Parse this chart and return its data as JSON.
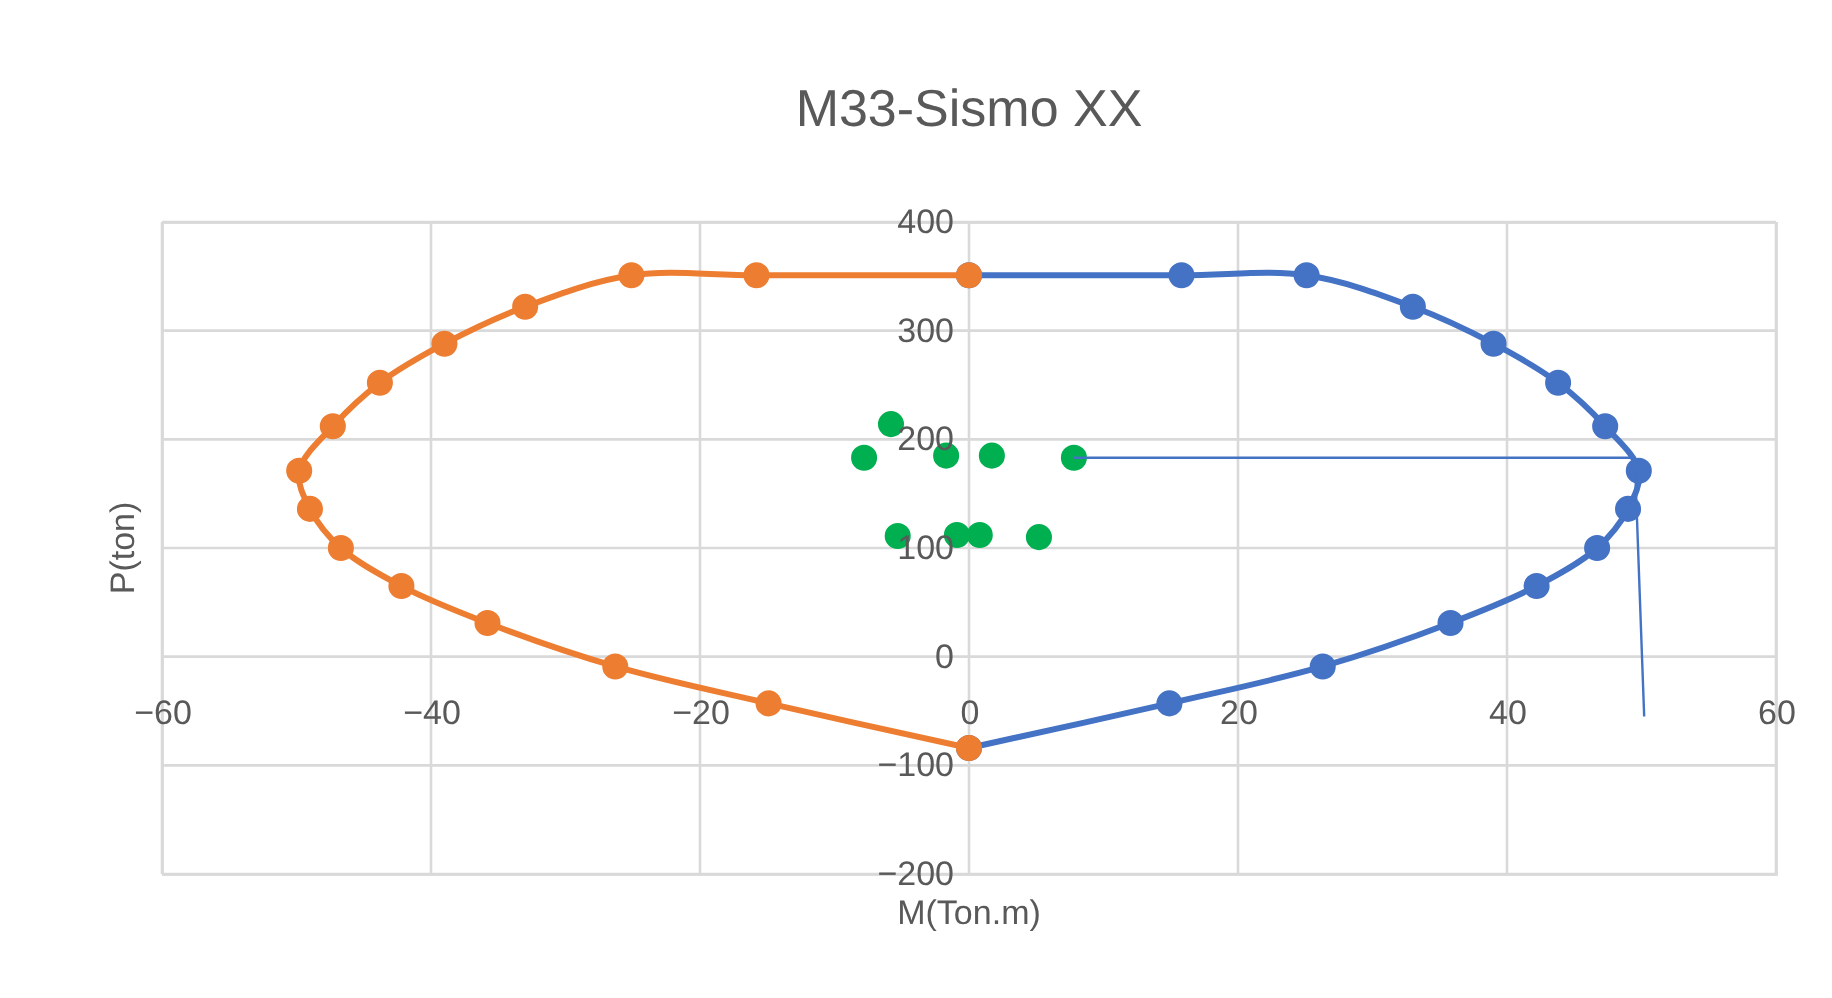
{
  "chart_data": {
    "type": "line",
    "title": "M33-Sismo XX",
    "xlabel": "M(Ton.m)",
    "ylabel": "P(ton)",
    "xlim": [
      -60,
      60
    ],
    "xticks": [
      -60,
      -40,
      -20,
      0,
      20,
      40,
      60
    ],
    "ylim": [
      -200,
      400
    ],
    "yticks": [
      -200,
      -100,
      0,
      100,
      200,
      300,
      400
    ],
    "grid": true,
    "series": [
      {
        "marker": "circle",
        "color": "#4472c4",
        "x": [
          0,
          15.8,
          25.1,
          33,
          39,
          43.8,
          47.3,
          49.8,
          49,
          46.7,
          42.2,
          35.8,
          26.3,
          14.9,
          0
        ],
        "values": [
          351,
          351,
          351,
          322,
          288,
          252,
          212,
          171,
          136,
          100,
          65,
          31,
          -9,
          -43,
          -84
        ]
      },
      {
        "marker": "circle",
        "color": "#ed7d31",
        "x": [
          0,
          -15.8,
          -25.1,
          -33,
          -39,
          -43.8,
          -47.3,
          -49.8,
          -49,
          -46.7,
          -42.2,
          -35.8,
          -26.3,
          -14.9,
          0
        ],
        "values": [
          351,
          351,
          351,
          322,
          288,
          252,
          212,
          171,
          136,
          100,
          65,
          31,
          -9,
          -43,
          -84
        ]
      },
      {
        "type": "scatter",
        "marker": "circle",
        "color": "#00b050",
        "x": [
          -7.8,
          -5.8,
          -1.7,
          1.7,
          7.8,
          -5.3,
          -0.9,
          0.8,
          5.2
        ],
        "values": [
          183,
          214,
          185,
          185,
          183,
          111,
          112,
          112,
          110
        ]
      },
      {
        "marker": "none",
        "color": "#4472c4",
        "x": [
          7.8,
          49.5,
          50.2
        ],
        "values": [
          183,
          183,
          -55
        ]
      }
    ]
  }
}
